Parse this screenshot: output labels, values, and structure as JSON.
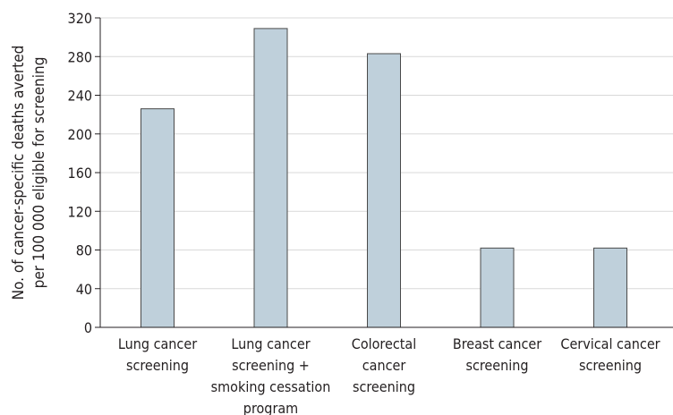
{
  "chart_data": {
    "type": "bar",
    "title": "",
    "xlabel": "",
    "ylabel": [
      "No. of cancer-specific deaths averted",
      "per 100 000 eligible for screening"
    ],
    "ylim": [
      0,
      320
    ],
    "yticks": [
      0,
      40,
      80,
      120,
      160,
      200,
      240,
      280,
      320
    ],
    "grid": true,
    "categories": [
      [
        "Lung cancer",
        "screening"
      ],
      [
        "Lung cancer",
        "screening +",
        "smoking cessation",
        "program"
      ],
      [
        "Colorectal",
        "cancer",
        "screening"
      ],
      [
        "Breast cancer",
        "screening"
      ],
      [
        "Cervical cancer",
        "screening"
      ]
    ],
    "values": [
      226,
      309,
      283,
      82,
      82
    ],
    "colors": {
      "bar_fill": "#bfd0db",
      "bar_stroke": "#4a4a4a",
      "grid": "#d9d9d9",
      "axis": "#231f20"
    }
  }
}
